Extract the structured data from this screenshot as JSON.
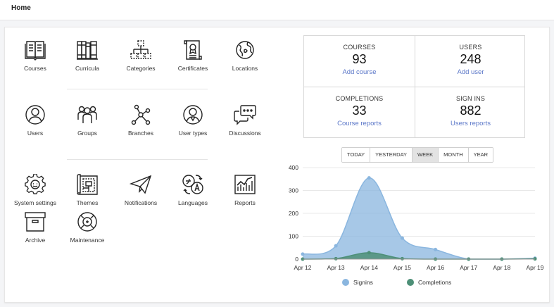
{
  "header": {
    "title": "Home"
  },
  "tiles": [
    {
      "label": "Courses",
      "icon": "book-icon"
    },
    {
      "label": "Curricula",
      "icon": "books-shelf-icon"
    },
    {
      "label": "Categories",
      "icon": "hierarchy-icon"
    },
    {
      "label": "Certificates",
      "icon": "certificate-icon"
    },
    {
      "label": "Locations",
      "icon": "globe-icon"
    },
    {
      "label": "Users",
      "icon": "user-icon"
    },
    {
      "label": "Groups",
      "icon": "group-icon"
    },
    {
      "label": "Branches",
      "icon": "branches-icon"
    },
    {
      "label": "User types",
      "icon": "user-type-icon"
    },
    {
      "label": "Discussions",
      "icon": "chat-bubbles-icon"
    },
    {
      "label": "System settings",
      "icon": "gear-icon"
    },
    {
      "label": "Themes",
      "icon": "blueprint-icon"
    },
    {
      "label": "Notifications",
      "icon": "paper-plane-icon"
    },
    {
      "label": "Languages",
      "icon": "translate-icon"
    },
    {
      "label": "Reports",
      "icon": "line-chart-icon"
    },
    {
      "label": "Archive",
      "icon": "archive-box-icon"
    },
    {
      "label": "Maintenance",
      "icon": "lifebuoy-icon"
    }
  ],
  "stats": [
    {
      "caption": "COURSES",
      "value": "93",
      "link": "Add course"
    },
    {
      "caption": "USERS",
      "value": "248",
      "link": "Add user"
    },
    {
      "caption": "COMPLETIONS",
      "value": "33",
      "link": "Course reports"
    },
    {
      "caption": "SIGN INS",
      "value": "882",
      "link": "Users reports"
    }
  ],
  "period_tabs": {
    "items": [
      "TODAY",
      "YESTERDAY",
      "WEEK",
      "MONTH",
      "YEAR"
    ],
    "selected": "WEEK"
  },
  "chart_data": {
    "type": "area",
    "x": [
      "Apr 12",
      "Apr 13",
      "Apr 14",
      "Apr 15",
      "Apr 16",
      "Apr 17",
      "Apr 18",
      "Apr 19"
    ],
    "ylim": [
      0,
      400
    ],
    "yticks": [
      0,
      100,
      200,
      300,
      400
    ],
    "series": [
      {
        "name": "Signins",
        "values": [
          22,
          58,
          355,
          92,
          42,
          0,
          0,
          4
        ],
        "color": "#8ab6df"
      },
      {
        "name": "Completions",
        "values": [
          0,
          2,
          28,
          2,
          0,
          0,
          0,
          1
        ],
        "color": "#4d8f77"
      }
    ],
    "legend_position": "bottom",
    "grid": true
  }
}
